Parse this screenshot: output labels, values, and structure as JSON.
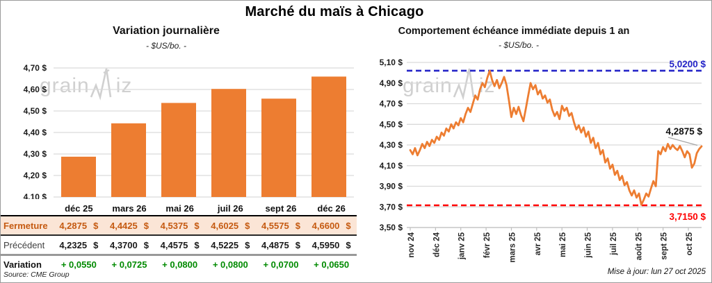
{
  "page": {
    "title": "Marché du maïs à Chicago",
    "source": "Source: CME Group",
    "updated": "Mise à jour: lun 27 oct 2025",
    "watermark_prefix": "grain",
    "watermark_suffix": "iz"
  },
  "colors": {
    "orange": "#ED7D31",
    "blue": "#2424C8",
    "red": "#FF0000",
    "green": "#008A00",
    "grid": "#D9D9D9",
    "axis": "#BFBFBF",
    "fermeture_bg": "#FBE5D6",
    "fermeture_text": "#C55A11",
    "leader_gray": "#A6A6A6"
  },
  "chart_data": [
    {
      "type": "bar",
      "title": "Variation journalière",
      "subtitle": "- $US/bo. -",
      "ylabel": "$US/bo.",
      "categories": [
        "déc 25",
        "mars 26",
        "mai 26",
        "juil 26",
        "sept 26",
        "déc 26"
      ],
      "values": [
        4.2875,
        4.4425,
        4.5375,
        4.6025,
        4.5575,
        4.66
      ],
      "ylim": [
        4.1,
        4.7
      ],
      "ytick_step": 0.1,
      "grid": true,
      "legend": "none"
    },
    {
      "type": "line",
      "title": "Comportement échéance immédiate depuis 1 an",
      "subtitle": "- $US/bo. -",
      "ylabel": "$US/bo.",
      "x_tick_labels": [
        "nov 24",
        "déc 24",
        "janv 25",
        "févr 25",
        "mars 25",
        "avr 25",
        "mai 25",
        "juin 25",
        "juil 25",
        "août 25",
        "sept 25",
        "oct 25"
      ],
      "values": [
        4.25,
        4.21,
        4.27,
        4.2,
        4.25,
        4.31,
        4.27,
        4.33,
        4.29,
        4.35,
        4.32,
        4.38,
        4.35,
        4.42,
        4.39,
        4.46,
        4.43,
        4.5,
        4.46,
        4.52,
        4.49,
        4.56,
        4.52,
        4.6,
        4.66,
        4.62,
        4.7,
        4.78,
        4.74,
        4.84,
        4.9,
        4.86,
        4.95,
        5.02,
        4.93,
        4.87,
        4.93,
        4.85,
        4.9,
        4.96,
        4.88,
        4.73,
        4.57,
        4.66,
        4.6,
        4.67,
        4.59,
        4.53,
        4.65,
        4.78,
        4.9,
        4.84,
        4.88,
        4.79,
        4.83,
        4.75,
        4.78,
        4.71,
        4.74,
        4.64,
        4.58,
        4.62,
        4.55,
        4.68,
        4.63,
        4.66,
        4.58,
        4.61,
        4.52,
        4.45,
        4.49,
        4.42,
        4.47,
        4.38,
        4.43,
        4.32,
        4.37,
        4.27,
        4.32,
        4.21,
        4.25,
        4.13,
        4.17,
        4.07,
        4.11,
        4.01,
        4.05,
        3.96,
        4.0,
        3.91,
        3.94,
        3.86,
        3.81,
        3.86,
        3.79,
        3.83,
        3.72,
        3.77,
        3.83,
        3.8,
        3.88,
        3.95,
        3.9,
        4.24,
        4.21,
        4.28,
        4.24,
        4.31,
        4.26,
        4.3,
        4.27,
        4.25,
        4.29,
        4.24,
        4.18,
        4.24,
        4.21,
        4.08,
        4.12,
        4.22,
        4.26,
        4.2875
      ],
      "ylim": [
        3.5,
        5.1
      ],
      "ytick_step": 0.2,
      "grid": true,
      "high_line": {
        "value": 5.02,
        "label": "5,0200 $"
      },
      "low_line": {
        "value": 3.715,
        "label": "3,7150 $"
      },
      "last_point_label": "4,2875 $"
    }
  ],
  "table": {
    "rows": [
      {
        "style": "fermeture",
        "label": "Fermeture",
        "values": [
          "4,2875 $",
          "4,4425 $",
          "4,5375 $",
          "4,6025 $",
          "4,5575 $",
          "4,6600 $"
        ]
      },
      {
        "style": "precedent",
        "label": "Précédent",
        "values": [
          "4,2325 $",
          "4,3700 $",
          "4,4575 $",
          "4,5225 $",
          "4,4875 $",
          "4,5950 $"
        ]
      },
      {
        "style": "variation",
        "label": "Variation",
        "values": [
          "+ 0,0550",
          "+ 0,0725",
          "+ 0,0800",
          "+ 0,0800",
          "+ 0,0700",
          "+ 0,0650"
        ]
      }
    ]
  }
}
